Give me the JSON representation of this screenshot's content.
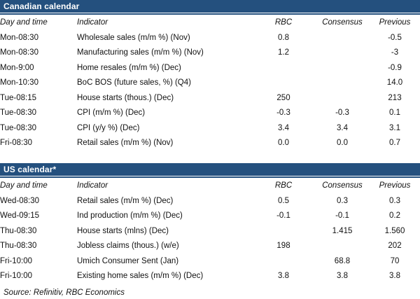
{
  "accent_color": "#24507E",
  "columns_keys": [
    "day",
    "indicator",
    "rbc",
    "consensus",
    "previous"
  ],
  "canadian": {
    "title": "Canadian calendar",
    "columns": [
      "Day and time",
      "Indicator",
      "RBC",
      "Consensus",
      "Previous"
    ],
    "rows": [
      {
        "day": "Mon-08:30",
        "indicator": "Wholesale sales (m/m %) (Nov)",
        "rbc": "0.8",
        "consensus": "",
        "previous": "-0.5"
      },
      {
        "day": "Mon-08:30",
        "indicator": "Manufacturing sales (m/m %) (Nov)",
        "rbc": "1.2",
        "consensus": "",
        "previous": "-3"
      },
      {
        "day": "Mon-9:00",
        "indicator": "Home resales (m/m %) (Dec)",
        "rbc": "",
        "consensus": "",
        "previous": "-0.9"
      },
      {
        "day": "Mon-10:30",
        "indicator": "BoC BOS (future sales, %) (Q4)",
        "rbc": "",
        "consensus": "",
        "previous": "14.0"
      },
      {
        "day": "Tue-08:15",
        "indicator": "House starts (thous.) (Dec)",
        "rbc": "250",
        "consensus": "",
        "previous": "213"
      },
      {
        "day": "Tue-08:30",
        "indicator": "CPI (m/m %) (Dec)",
        "rbc": "-0.3",
        "consensus": "-0.3",
        "previous": "0.1"
      },
      {
        "day": "Tue-08:30",
        "indicator": "CPI (y/y %) (Dec)",
        "rbc": "3.4",
        "consensus": "3.4",
        "previous": "3.1"
      },
      {
        "day": "Fri-08:30",
        "indicator": "Retail sales (m/m %) (Nov)",
        "rbc": "0.0",
        "consensus": "0.0",
        "previous": "0.7"
      }
    ]
  },
  "us": {
    "title": "US calendar*",
    "columns": [
      "Day and time",
      "Indicator",
      "RBC",
      "Consensus",
      "Previous"
    ],
    "rows": [
      {
        "day": "Wed-08:30",
        "indicator": "Retail sales (m/m %) (Dec)",
        "rbc": "0.5",
        "consensus": "0.3",
        "previous": "0.3"
      },
      {
        "day": "Wed-09:15",
        "indicator": "Ind production (m/m %) (Dec)",
        "rbc": "-0.1",
        "consensus": "-0.1",
        "previous": "0.2"
      },
      {
        "day": "Thu-08:30",
        "indicator": "House starts (mlns) (Dec)",
        "rbc": "",
        "consensus": "1.415",
        "previous": "1.560"
      },
      {
        "day": "Thu-08:30",
        "indicator": "Jobless claims (thous.) (w/e)",
        "rbc": "198",
        "consensus": "",
        "previous": "202"
      },
      {
        "day": "Fri-10:00",
        "indicator": "Umich Consumer Sent (Jan)",
        "rbc": "",
        "consensus": "68.8",
        "previous": "70"
      },
      {
        "day": "Fri-10:00",
        "indicator": "Existing home sales (m/m %) (Dec)",
        "rbc": "3.8",
        "consensus": "3.8",
        "previous": "3.8"
      }
    ]
  },
  "source": "Source: Refinitiv,  RBC Economics"
}
